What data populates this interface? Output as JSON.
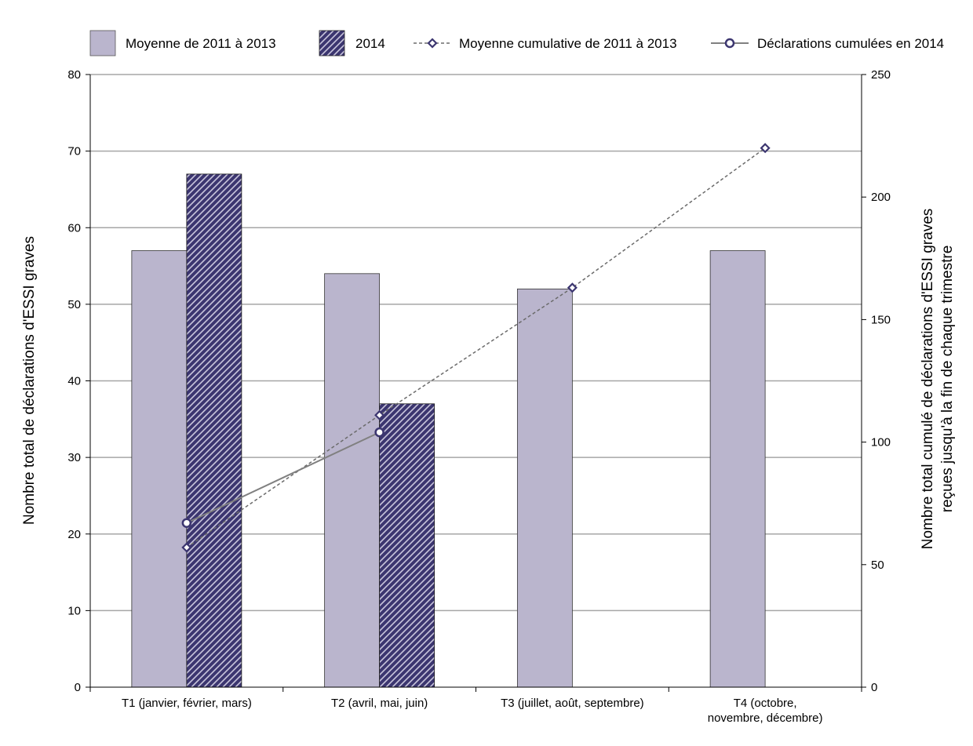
{
  "chart_data": {
    "type": "bar",
    "categories": [
      [
        "T1 (janvier, février, mars)"
      ],
      [
        "T2 (avril, mai, juin)"
      ],
      [
        "T3 (juillet, août, septembre)"
      ],
      [
        "T4 (octobre,",
        "novembre, décembre)"
      ]
    ],
    "bar_series": [
      {
        "name": "Moyenne de 2011 à 2013",
        "values": [
          57,
          54,
          52,
          57
        ],
        "color": "#bab5cd"
      },
      {
        "name": "2014",
        "values": [
          67,
          37,
          null,
          null
        ],
        "color": "#3c3670",
        "pattern": "diagonal-hatch"
      }
    ],
    "line_series": [
      {
        "name": "Moyenne cumulative de 2011 à 2013",
        "axis": "right",
        "style": "dashed",
        "marker": "diamond",
        "values": [
          57,
          111,
          163,
          220
        ],
        "color": "#6b6b6b"
      },
      {
        "name": "Déclarations cumulées en 2014",
        "axis": "right",
        "style": "solid",
        "marker": "circle",
        "values": [
          67,
          104,
          null,
          null
        ],
        "color": "#808080"
      }
    ],
    "left_axis": {
      "title": "Nombre total de déclarations d'ESSI graves",
      "range": [
        0,
        80
      ],
      "ticks": [
        "0",
        "10",
        "20",
        "30",
        "40",
        "50",
        "60",
        "70",
        "80"
      ]
    },
    "right_axis": {
      "title_lines": [
        "Nombre total cumulé de déclarations d'ESSI graves",
        "reçues jusqu'à la fin de chaque trimestre"
      ],
      "range": [
        0,
        250
      ],
      "ticks": [
        "0",
        "50",
        "100",
        "150",
        "200",
        "250"
      ]
    },
    "grid": true,
    "legend_position": "top",
    "marker_color": "#3c3670"
  }
}
